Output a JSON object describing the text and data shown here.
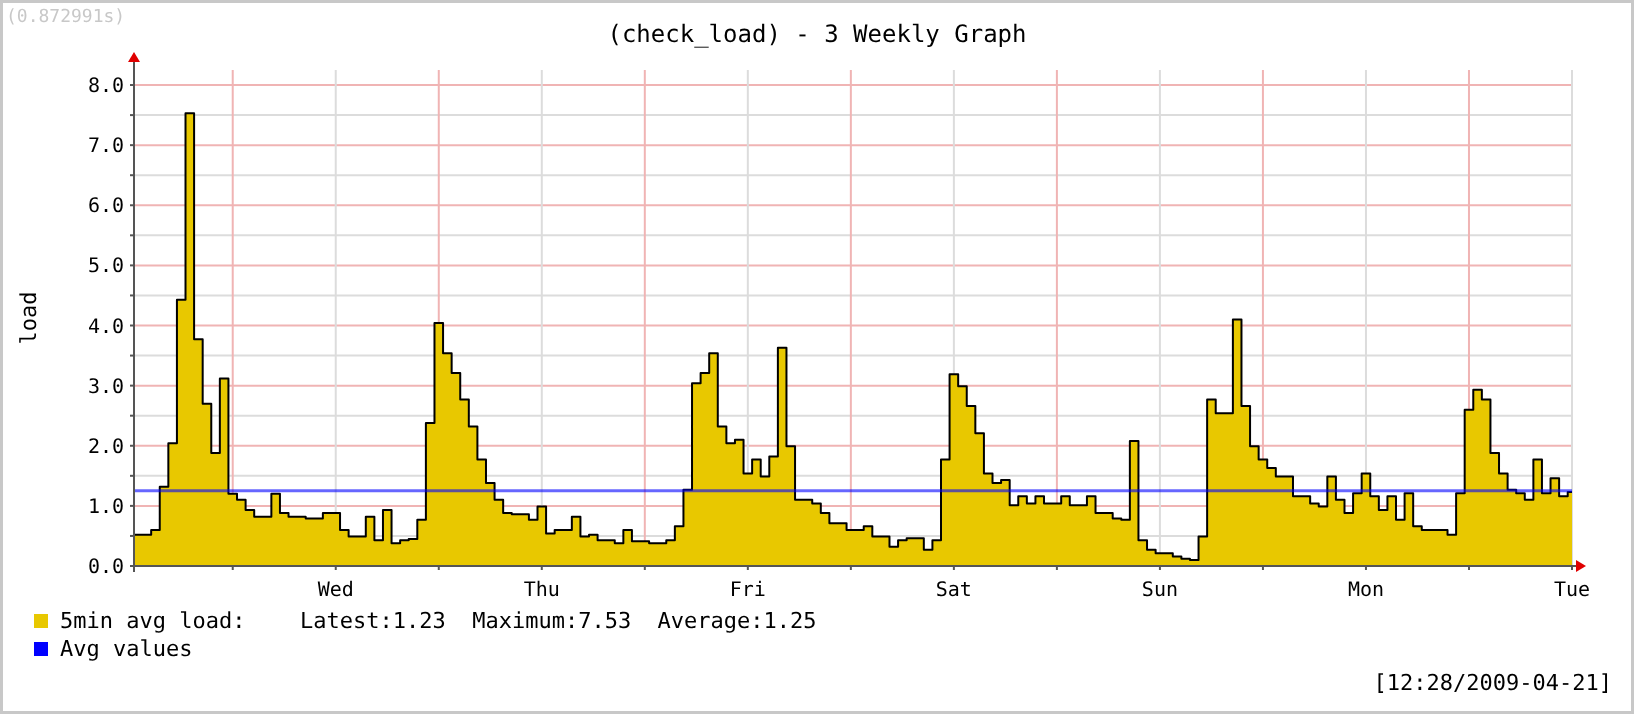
{
  "chart_data": {
    "type": "area",
    "title": "(check_load) - 3 Weekly Graph",
    "ylabel": "load",
    "annotations": [
      "Latest:1.23  Maximum:7.53  Average:1.25",
      "[12:28/2009-04-21]",
      "(0.872991s)"
    ],
    "categories": [
      null,
      null,
      null,
      null,
      null,
      null,
      null,
      null,
      null,
      null,
      null,
      null,
      null,
      null,
      null,
      null,
      null,
      null,
      null,
      null,
      null,
      null,
      null,
      "Wed",
      null,
      null,
      null,
      null,
      null,
      null,
      null,
      null,
      null,
      null,
      null,
      null,
      null,
      null,
      null,
      null,
      null,
      null,
      null,
      null,
      null,
      null,
      null,
      "Thu",
      null,
      null,
      null,
      null,
      null,
      null,
      null,
      null,
      null,
      null,
      null,
      null,
      null,
      null,
      null,
      null,
      null,
      null,
      null,
      null,
      null,
      null,
      null,
      "Fri",
      null,
      null,
      null,
      null,
      null,
      null,
      null,
      null,
      null,
      null,
      null,
      null,
      null,
      null,
      null,
      null,
      null,
      null,
      null,
      null,
      null,
      null,
      null,
      "Sat",
      null,
      null,
      null,
      null,
      null,
      null,
      null,
      null,
      null,
      null,
      null,
      null,
      null,
      null,
      null,
      null,
      null,
      null,
      null,
      null,
      null,
      null,
      null,
      "Sun",
      null,
      null,
      null,
      null,
      null,
      null,
      null,
      null,
      null,
      null,
      null,
      null,
      null,
      null,
      null,
      null,
      null,
      null,
      null,
      null,
      null,
      null,
      null,
      "Mon",
      null,
      null,
      null,
      null,
      null,
      null,
      null,
      null,
      null,
      null,
      null,
      null,
      null,
      null,
      null,
      null,
      null,
      null,
      null,
      null,
      null,
      null,
      null,
      "Tue"
    ],
    "ylim": [
      0,
      8.25
    ],
    "yticks": [
      {
        "value": 0,
        "label": "0.0"
      },
      {
        "value": 0.5,
        "label": null
      },
      {
        "value": 1,
        "label": "1.0"
      },
      {
        "value": 1.5,
        "label": null
      },
      {
        "value": 2,
        "label": "2.0"
      },
      {
        "value": 2.5,
        "label": null
      },
      {
        "value": 3,
        "label": "3.0"
      },
      {
        "value": 3.5,
        "label": null
      },
      {
        "value": 4,
        "label": "4.0"
      },
      {
        "value": 4.5,
        "label": null
      },
      {
        "value": 5,
        "label": "5.0"
      },
      {
        "value": 5.5,
        "label": null
      },
      {
        "value": 6,
        "label": "6.0"
      },
      {
        "value": 6.5,
        "label": null
      },
      {
        "value": 7,
        "label": "7.0"
      },
      {
        "value": 7.5,
        "label": null
      },
      {
        "value": 8,
        "label": "8.0"
      }
    ],
    "grid": true,
    "legend": "bottom",
    "ref_lines": [
      {
        "axis": "y",
        "value": 1.25,
        "label": "Avg values",
        "color": "#0000ff"
      }
    ],
    "series": [
      {
        "name": "5min avg load:",
        "color": "#e8c800",
        "values": [
          0.52,
          0.52,
          0.6,
          1.32,
          2.04,
          4.43,
          7.53,
          3.77,
          2.7,
          1.88,
          3.12,
          1.2,
          1.1,
          0.93,
          0.82,
          0.82,
          1.2,
          0.88,
          0.82,
          0.82,
          0.79,
          0.79,
          0.88,
          0.88,
          0.6,
          0.49,
          0.49,
          0.82,
          0.43,
          0.93,
          0.38,
          0.43,
          0.45,
          0.77,
          2.38,
          4.04,
          3.54,
          3.21,
          2.77,
          2.32,
          1.77,
          1.38,
          1.1,
          0.88,
          0.86,
          0.86,
          0.77,
          0.99,
          0.54,
          0.6,
          0.6,
          0.82,
          0.49,
          0.52,
          0.43,
          0.43,
          0.38,
          0.6,
          0.41,
          0.41,
          0.38,
          0.38,
          0.43,
          0.66,
          1.27,
          3.04,
          3.21,
          3.54,
          2.32,
          2.04,
          2.1,
          1.54,
          1.77,
          1.49,
          1.82,
          3.63,
          1.99,
          1.1,
          1.1,
          1.04,
          0.88,
          0.71,
          0.71,
          0.6,
          0.6,
          0.66,
          0.49,
          0.49,
          0.32,
          0.43,
          0.46,
          0.46,
          0.27,
          0.43,
          1.77,
          3.19,
          2.99,
          2.66,
          2.21,
          1.54,
          1.38,
          1.43,
          1.01,
          1.16,
          1.04,
          1.16,
          1.04,
          1.04,
          1.16,
          1.01,
          1.01,
          1.16,
          0.88,
          0.88,
          0.79,
          0.77,
          2.08,
          0.43,
          0.27,
          0.21,
          0.21,
          0.16,
          0.12,
          0.1,
          0.49,
          2.77,
          2.54,
          2.54,
          4.1,
          2.66,
          1.99,
          1.77,
          1.63,
          1.49,
          1.49,
          1.16,
          1.16,
          1.04,
          0.99,
          1.49,
          1.1,
          0.88,
          1.21,
          1.54,
          1.16,
          0.93,
          1.16,
          0.77,
          1.21,
          0.66,
          0.6,
          0.6,
          0.6,
          0.52,
          1.21,
          2.6,
          2.93,
          2.77,
          1.88,
          1.54,
          1.27,
          1.21,
          1.1,
          1.77,
          1.21,
          1.46,
          1.16,
          1.23
        ]
      }
    ]
  }
}
